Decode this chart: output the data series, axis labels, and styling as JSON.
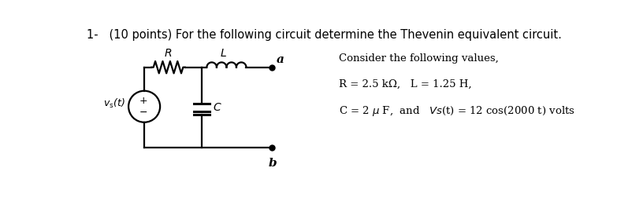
{
  "title": "1-   (10 points) For the following circuit determine the Thevenin equivalent circuit.",
  "title_fontsize": 10.5,
  "title_color": "#000000",
  "consider_text": "Consider the following values,",
  "values_line1": "R = 2.5 kΩ,   L = 1.25 H,",
  "label_R": "R",
  "label_L": "L",
  "label_a": "a",
  "label_b": "b",
  "label_C": "C",
  "label_Vs": "v_s(t)",
  "bg_color": "#ffffff",
  "text_color": "#000000",
  "circuit_lw": 1.6
}
